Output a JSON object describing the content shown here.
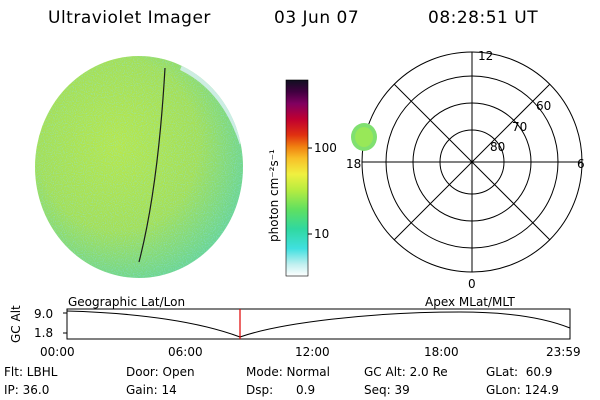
{
  "header": {
    "title": "Ultraviolet Imager",
    "date": "03 Jun 07",
    "time": "08:28:51 UT"
  },
  "colorbar": {
    "unit_label": "photon cm⁻²s⁻¹",
    "ticks": [
      "100",
      "10"
    ]
  },
  "polar": {
    "top_label": "12",
    "bottom_label": "0",
    "left_label": "18",
    "right_label": "6",
    "ring_labels": [
      "60",
      "70",
      "80"
    ]
  },
  "timeline": {
    "left_title": "Geographic Lat/Lon",
    "right_title": "Apex  MLat/MLT",
    "y_axis_label": "GC Alt",
    "y_max": "9.0",
    "y_min": "1.8",
    "x_ticks": [
      "00:00",
      "06:00",
      "12:00",
      "18:00",
      "23:59"
    ],
    "marker_color": "#e00000"
  },
  "info": {
    "row1": {
      "flt": "Flt: LBHL",
      "door": "Door: Open",
      "mode": "Mode: Normal",
      "gcalt": "GC Alt: 2.0 Re",
      "glat": "GLat:  60.9"
    },
    "row2": {
      "ip": "IP: 36.0",
      "gain": "Gain: 14",
      "dsp": "Dsp:      0.9",
      "seq": "Seq: 39",
      "glon": "GLon: 124.9"
    }
  }
}
